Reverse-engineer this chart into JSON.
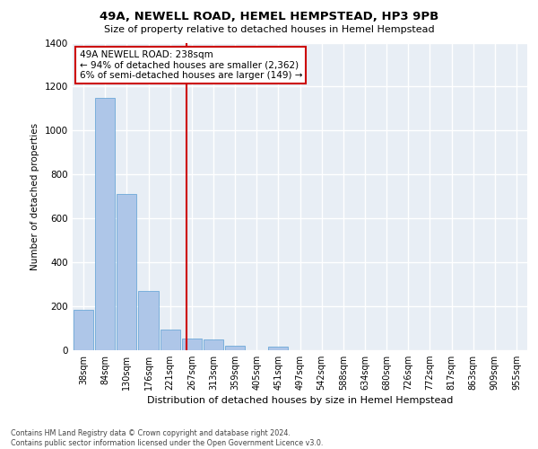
{
  "title": "49A, NEWELL ROAD, HEMEL HEMPSTEAD, HP3 9PB",
  "subtitle": "Size of property relative to detached houses in Hemel Hempstead",
  "xlabel": "Distribution of detached houses by size in Hemel Hempstead",
  "ylabel": "Number of detached properties",
  "categories": [
    "38sqm",
    "84sqm",
    "130sqm",
    "176sqm",
    "221sqm",
    "267sqm",
    "313sqm",
    "359sqm",
    "405sqm",
    "451sqm",
    "497sqm",
    "542sqm",
    "588sqm",
    "634sqm",
    "680sqm",
    "726sqm",
    "772sqm",
    "817sqm",
    "863sqm",
    "909sqm",
    "955sqm"
  ],
  "values": [
    185,
    1150,
    710,
    270,
    95,
    55,
    50,
    20,
    0,
    18,
    0,
    0,
    0,
    0,
    0,
    0,
    0,
    0,
    0,
    0,
    0
  ],
  "bar_color": "#aec6e8",
  "bar_edge_color": "#5a9fd4",
  "vline_color": "#cc0000",
  "vline_pos": 4.75,
  "annotation_text": "49A NEWELL ROAD: 238sqm\n← 94% of detached houses are smaller (2,362)\n6% of semi-detached houses are larger (149) →",
  "annotation_box_color": "#ffffff",
  "annotation_box_edge_color": "#cc0000",
  "ylim": [
    0,
    1400
  ],
  "yticks": [
    0,
    200,
    400,
    600,
    800,
    1000,
    1200,
    1400
  ],
  "background_color": "#e8eef5",
  "grid_color": "#ffffff",
  "footer_line1": "Contains HM Land Registry data © Crown copyright and database right 2024.",
  "footer_line2": "Contains public sector information licensed under the Open Government Licence v3.0."
}
